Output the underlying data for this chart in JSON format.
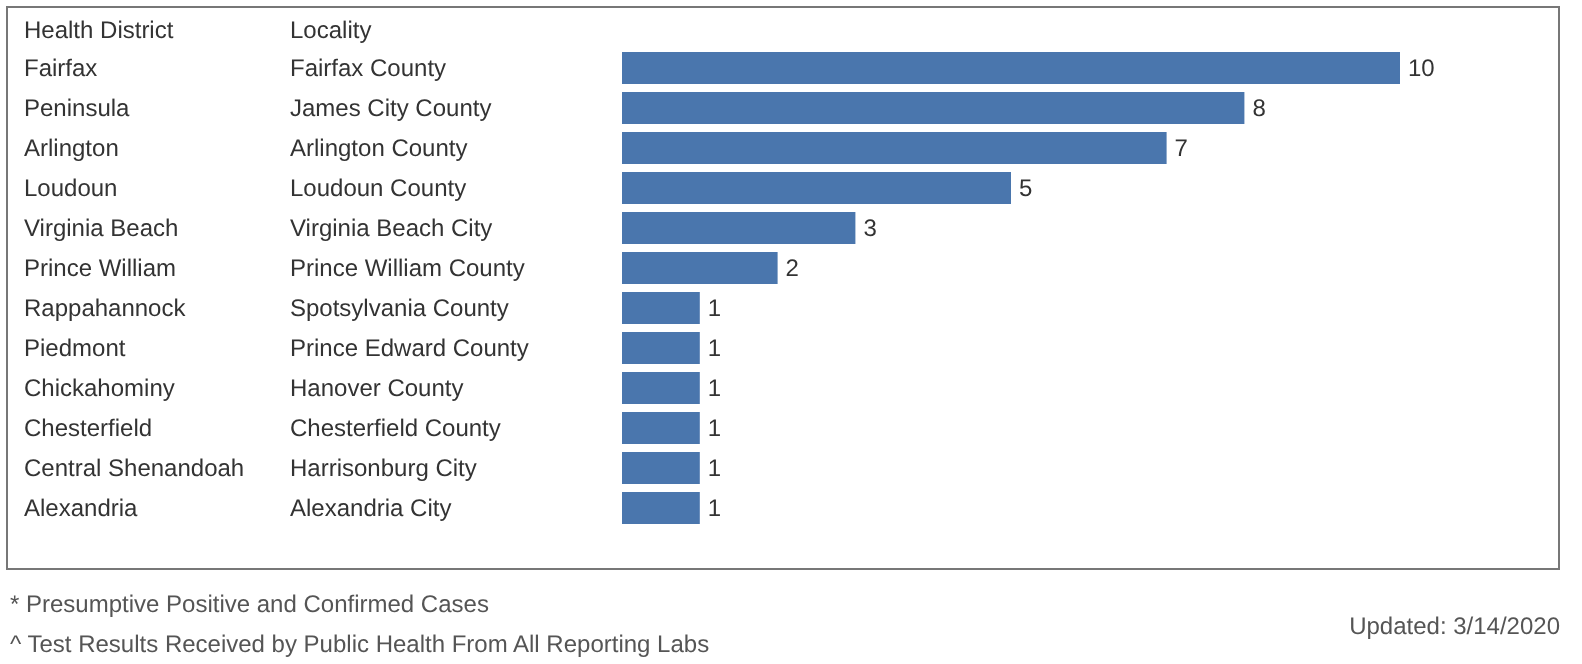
{
  "chart_data": {
    "type": "bar",
    "orientation": "horizontal",
    "ylabel": "Health District",
    "y2label": "Locality",
    "categories": [
      "Fairfax",
      "Peninsula",
      "Arlington",
      "Loudoun",
      "Virginia Beach",
      "Prince William",
      "Rappahannock",
      "Piedmont",
      "Chickahominy",
      "Chesterfield",
      "Central Shenandoah",
      "Alexandria"
    ],
    "y2_categories": [
      "Fairfax County",
      "James City County",
      "Arlington County",
      "Loudoun County",
      "Virginia Beach City",
      "Prince William County",
      "Spotsylvania County",
      "Prince Edward County",
      "Hanover County",
      "Chesterfield County",
      "Harrisonburg City",
      "Alexandria City"
    ],
    "values": [
      10,
      8,
      7,
      5,
      3,
      2,
      1,
      1,
      1,
      1,
      1,
      1
    ],
    "color": "#4a76ad",
    "data_labels": true,
    "annotations": [
      "* Presumptive Positive and Confirmed Cases",
      "^ Test Results Received by Public Health From All Reporting Labs",
      "Updated: 3/14/2020"
    ]
  }
}
